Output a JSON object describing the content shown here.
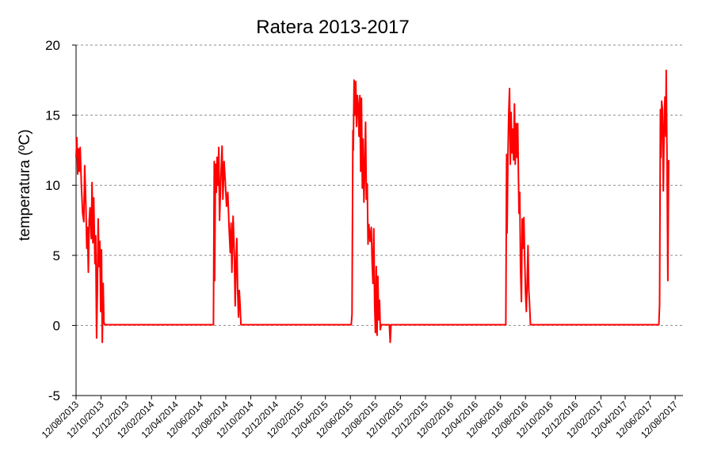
{
  "chart_data": {
    "type": "line",
    "title": "Ratera 2013-2017",
    "xlabel": "",
    "ylabel": "temperatura (ºC)",
    "ylim": [
      -5,
      20
    ],
    "yticks": [
      -5,
      0,
      5,
      10,
      15,
      20
    ],
    "grid": "horizontal dashed",
    "legend": "none",
    "xlim": [
      "2013-08-12",
      "2017-08-31"
    ],
    "x_tick_labels": [
      "12/08/2013",
      "12/10/2013",
      "12/12/2013",
      "12/02/2014",
      "12/04/2014",
      "12/06/2014",
      "12/08/2014",
      "12/10/2014",
      "12/12/2014",
      "12/02/2015",
      "12/04/2015",
      "12/06/2015",
      "12/08/2015",
      "12/10/2015",
      "12/12/2015",
      "12/02/2016",
      "12/04/2016",
      "12/06/2016",
      "12/08/2016",
      "12/10/2016",
      "12/12/2016",
      "12/02/2017",
      "12/04/2017",
      "12/06/2017",
      "12/08/2017"
    ],
    "series": [
      {
        "color": "#ff0000",
        "points": [
          [
            "2013-08-12",
            12.0
          ],
          [
            "2013-08-14",
            13.4
          ],
          [
            "2013-08-16",
            10.8
          ],
          [
            "2013-08-18",
            12.6
          ],
          [
            "2013-08-20",
            11.0
          ],
          [
            "2013-08-22",
            12.7
          ],
          [
            "2013-08-25",
            10.0
          ],
          [
            "2013-08-28",
            8.0
          ],
          [
            "2013-08-31",
            7.4
          ],
          [
            "2013-09-02",
            11.4
          ],
          [
            "2013-09-05",
            8.6
          ],
          [
            "2013-09-07",
            5.5
          ],
          [
            "2013-09-09",
            7.0
          ],
          [
            "2013-09-11",
            3.8
          ],
          [
            "2013-09-13",
            7.5
          ],
          [
            "2013-09-15",
            8.4
          ],
          [
            "2013-09-18",
            6.2
          ],
          [
            "2013-09-20",
            10.2
          ],
          [
            "2013-09-22",
            5.9
          ],
          [
            "2013-09-24",
            9.1
          ],
          [
            "2013-09-27",
            4.4
          ],
          [
            "2013-09-29",
            6.4
          ],
          [
            "2013-10-01",
            -0.9
          ],
          [
            "2013-10-03",
            2.5
          ],
          [
            "2013-10-05",
            7.6
          ],
          [
            "2013-10-07",
            4.2
          ],
          [
            "2013-10-09",
            6.0
          ],
          [
            "2013-10-11",
            1.0
          ],
          [
            "2013-10-13",
            5.4
          ],
          [
            "2013-10-15",
            -1.2
          ],
          [
            "2013-10-17",
            3.0
          ],
          [
            "2013-10-19",
            0.2
          ],
          [
            "2013-10-21",
            0.05
          ],
          [
            "2014-07-13",
            0.05
          ],
          [
            "2014-07-15",
            11.7
          ],
          [
            "2014-07-16",
            3.2
          ],
          [
            "2014-07-18",
            11.5
          ],
          [
            "2014-07-20",
            9.5
          ],
          [
            "2014-07-22",
            12.0
          ],
          [
            "2014-07-24",
            10.0
          ],
          [
            "2014-07-26",
            12.7
          ],
          [
            "2014-07-28",
            7.5
          ],
          [
            "2014-07-31",
            10.5
          ],
          [
            "2014-08-03",
            12.8
          ],
          [
            "2014-08-05",
            9.0
          ],
          [
            "2014-08-08",
            11.7
          ],
          [
            "2014-08-11",
            10.2
          ],
          [
            "2014-08-14",
            8.5
          ],
          [
            "2014-08-17",
            9.5
          ],
          [
            "2014-08-20",
            7.0
          ],
          [
            "2014-08-23",
            5.2
          ],
          [
            "2014-08-25",
            7.3
          ],
          [
            "2014-08-27",
            3.8
          ],
          [
            "2014-08-30",
            7.8
          ],
          [
            "2014-09-02",
            5.0
          ],
          [
            "2014-09-04",
            1.4
          ],
          [
            "2014-09-06",
            4.5
          ],
          [
            "2014-09-08",
            6.2
          ],
          [
            "2014-09-10",
            2.6
          ],
          [
            "2014-09-12",
            0.6
          ],
          [
            "2014-09-14",
            2.5
          ],
          [
            "2014-09-16",
            1.5
          ],
          [
            "2014-09-18",
            0.05
          ],
          [
            "2015-06-14",
            0.05
          ],
          [
            "2015-06-16",
            0.8
          ],
          [
            "2015-06-18",
            13.9
          ],
          [
            "2015-06-19",
            12.5
          ],
          [
            "2015-06-21",
            17.5
          ],
          [
            "2015-06-23",
            15.0
          ],
          [
            "2015-06-25",
            17.4
          ],
          [
            "2015-06-27",
            14.2
          ],
          [
            "2015-06-29",
            16.4
          ],
          [
            "2015-07-01",
            15.7
          ],
          [
            "2015-07-03",
            13.5
          ],
          [
            "2015-07-05",
            16.4
          ],
          [
            "2015-07-07",
            11.0
          ],
          [
            "2015-07-09",
            16.2
          ],
          [
            "2015-07-11",
            9.8
          ],
          [
            "2015-07-13",
            13.3
          ],
          [
            "2015-07-15",
            8.8
          ],
          [
            "2015-07-17",
            11.2
          ],
          [
            "2015-07-19",
            14.5
          ],
          [
            "2015-07-21",
            9.0
          ],
          [
            "2015-07-23",
            10.1
          ],
          [
            "2015-07-25",
            5.8
          ],
          [
            "2015-07-27",
            7.2
          ],
          [
            "2015-07-30",
            6.0
          ],
          [
            "2015-08-02",
            7.0
          ],
          [
            "2015-08-04",
            4.5
          ],
          [
            "2015-08-06",
            3.0
          ],
          [
            "2015-08-08",
            6.9
          ],
          [
            "2015-08-10",
            1.6
          ],
          [
            "2015-08-12",
            -0.5
          ],
          [
            "2015-08-14",
            4.2
          ],
          [
            "2015-08-16",
            -0.7
          ],
          [
            "2015-08-18",
            3.5
          ],
          [
            "2015-08-20",
            0.4
          ],
          [
            "2015-08-22",
            1.8
          ],
          [
            "2015-08-24",
            -0.3
          ],
          [
            "2015-08-26",
            0.05
          ],
          [
            "2015-09-15",
            0.05
          ],
          [
            "2015-09-17",
            -1.2
          ],
          [
            "2015-09-19",
            0.05
          ],
          [
            "2016-06-25",
            0.05
          ],
          [
            "2016-06-27",
            12.2
          ],
          [
            "2016-06-28",
            6.6
          ],
          [
            "2016-06-30",
            11.8
          ],
          [
            "2016-07-02",
            15.0
          ],
          [
            "2016-07-04",
            16.9
          ],
          [
            "2016-07-06",
            11.5
          ],
          [
            "2016-07-08",
            15.2
          ],
          [
            "2016-07-10",
            12.3
          ],
          [
            "2016-07-12",
            14.0
          ],
          [
            "2016-07-14",
            11.8
          ],
          [
            "2016-07-16",
            15.8
          ],
          [
            "2016-07-18",
            11.5
          ],
          [
            "2016-07-20",
            14.4
          ],
          [
            "2016-07-22",
            12.0
          ],
          [
            "2016-07-24",
            14.4
          ],
          [
            "2016-07-27",
            8.0
          ],
          [
            "2016-07-29",
            9.5
          ],
          [
            "2016-07-31",
            4.0
          ],
          [
            "2016-08-02",
            1.7
          ],
          [
            "2016-08-04",
            7.6
          ],
          [
            "2016-08-06",
            5.5
          ],
          [
            "2016-08-08",
            7.7
          ],
          [
            "2016-08-10",
            4.8
          ],
          [
            "2016-08-12",
            2.3
          ],
          [
            "2016-08-14",
            1.0
          ],
          [
            "2016-08-16",
            3.0
          ],
          [
            "2016-08-18",
            5.7
          ],
          [
            "2016-08-20",
            2.5
          ],
          [
            "2016-08-22",
            1.5
          ],
          [
            "2016-08-24",
            0.05
          ],
          [
            "2017-07-03",
            0.05
          ],
          [
            "2017-07-05",
            1.5
          ],
          [
            "2017-07-07",
            15.4
          ],
          [
            "2017-07-08",
            12.0
          ],
          [
            "2017-07-10",
            16.0
          ],
          [
            "2017-07-12",
            15.4
          ],
          [
            "2017-07-14",
            9.6
          ],
          [
            "2017-07-16",
            14.0
          ],
          [
            "2017-07-18",
            16.3
          ],
          [
            "2017-07-20",
            13.5
          ],
          [
            "2017-07-21",
            18.2
          ],
          [
            "2017-07-23",
            12.3
          ],
          [
            "2017-07-25",
            3.2
          ],
          [
            "2017-07-27",
            11.8
          ]
        ]
      }
    ]
  }
}
